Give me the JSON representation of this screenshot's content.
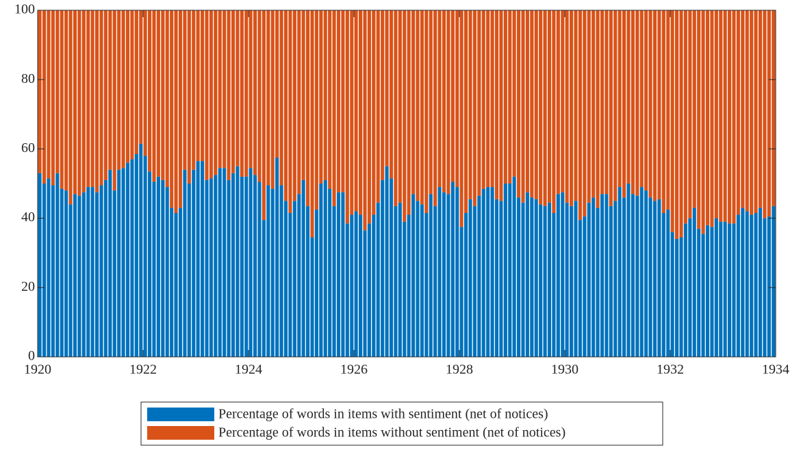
{
  "chart_data": {
    "type": "stacked-bar",
    "x": [
      1920,
      1920.083,
      1920.167,
      1920.25,
      1920.333,
      1920.417,
      1920.5,
      1920.583,
      1920.667,
      1920.75,
      1920.833,
      1920.917,
      1921,
      1921.083,
      1921.167,
      1921.25,
      1921.333,
      1921.417,
      1921.5,
      1921.583,
      1921.667,
      1921.75,
      1921.833,
      1921.917,
      1922,
      1922.083,
      1922.167,
      1922.25,
      1922.333,
      1922.417,
      1922.5,
      1922.583,
      1922.667,
      1922.75,
      1922.833,
      1922.917,
      1923,
      1923.083,
      1923.167,
      1923.25,
      1923.333,
      1923.417,
      1923.5,
      1923.583,
      1923.667,
      1923.75,
      1923.833,
      1923.917,
      1924,
      1924.083,
      1924.167,
      1924.25,
      1924.333,
      1924.417,
      1924.5,
      1924.583,
      1924.667,
      1924.75,
      1924.833,
      1924.917,
      1925,
      1925.083,
      1925.167,
      1925.25,
      1925.333,
      1925.417,
      1925.5,
      1925.583,
      1925.667,
      1925.75,
      1925.833,
      1925.917,
      1926,
      1926.083,
      1926.167,
      1926.25,
      1926.333,
      1926.417,
      1926.5,
      1926.583,
      1926.667,
      1926.75,
      1926.833,
      1926.917,
      1927,
      1927.083,
      1927.167,
      1927.25,
      1927.333,
      1927.417,
      1927.5,
      1927.583,
      1927.667,
      1927.75,
      1927.833,
      1927.917,
      1928,
      1928.083,
      1928.167,
      1928.25,
      1928.333,
      1928.417,
      1928.5,
      1928.583,
      1928.667,
      1928.75,
      1928.833,
      1928.917,
      1929,
      1929.083,
      1929.167,
      1929.25,
      1929.333,
      1929.417,
      1929.5,
      1929.583,
      1929.667,
      1929.75,
      1929.833,
      1929.917,
      1930,
      1930.083,
      1930.167,
      1930.25,
      1930.333,
      1930.417,
      1930.5,
      1930.583,
      1930.667,
      1930.75,
      1930.833,
      1930.917,
      1931,
      1931.083,
      1931.167,
      1931.25,
      1931.333,
      1931.417,
      1931.5,
      1931.583,
      1931.667,
      1931.75,
      1931.833,
      1931.917,
      1932,
      1932.083,
      1932.167,
      1932.25,
      1932.333,
      1932.417,
      1932.5,
      1932.583,
      1932.667,
      1932.75,
      1932.833,
      1932.917,
      1933,
      1933.083,
      1933.167,
      1933.25,
      1933.333,
      1933.417,
      1933.5,
      1933.583,
      1933.667,
      1933.75,
      1933.833,
      1933.917
    ],
    "series": [
      {
        "name": "Percentage of words in items with sentiment (net of notices)",
        "color": "#0072bd",
        "values": [
          53,
          50,
          51.5,
          49.5,
          53,
          48.5,
          48,
          44,
          47,
          46.5,
          47.5,
          49,
          49,
          47.5,
          49.5,
          51,
          54,
          48,
          54,
          54.5,
          56,
          57,
          58.5,
          61.5,
          58,
          53.5,
          50.5,
          52,
          51,
          49,
          43,
          41.5,
          43,
          54,
          50,
          54,
          56.5,
          56.5,
          51,
          51.5,
          52.5,
          54.5,
          54.5,
          51,
          53,
          55,
          52,
          52,
          54.5,
          52.5,
          50.5,
          39.5,
          49.5,
          48.5,
          57.5,
          49.5,
          45,
          41.5,
          45,
          47,
          51,
          43.5,
          34.5,
          42.5,
          50,
          51,
          48.5,
          43.5,
          47.5,
          47.5,
          38.5,
          41,
          42,
          41,
          36.5,
          38.5,
          41,
          44.5,
          51,
          55,
          51.5,
          43.5,
          44.5,
          39,
          41,
          47,
          45,
          44,
          41.5,
          47,
          43.5,
          49,
          47.5,
          47,
          50.5,
          49,
          37.5,
          41.5,
          45.5,
          43.5,
          46.5,
          48.5,
          49,
          49,
          45.5,
          45,
          50,
          50,
          52,
          46,
          44.5,
          47.5,
          46,
          45.5,
          44,
          43.5,
          44.5,
          41.5,
          47,
          47.5,
          44.5,
          43.5,
          45,
          39.5,
          40.5,
          44.5,
          46,
          43,
          47,
          47,
          43.5,
          45,
          49,
          46,
          50,
          47,
          46.5,
          49,
          48,
          46,
          45,
          45.5,
          41.5,
          42.5,
          36,
          34,
          34.5,
          38.5,
          40,
          43,
          37,
          35.5,
          38,
          37.5,
          40,
          39,
          39,
          38.5,
          38.5,
          41,
          43,
          42,
          41,
          41.5,
          43,
          40,
          40.5,
          43.5
        ]
      },
      {
        "name": "Percentage of words in items without sentiment (net of notices)",
        "color": "#d95319",
        "values": [
          47,
          50,
          48.5,
          50.5,
          47,
          51.5,
          52,
          56,
          53,
          53.5,
          52.5,
          51,
          51,
          52.5,
          50.5,
          49,
          46,
          52,
          46,
          45.5,
          44,
          43,
          41.5,
          38.5,
          42,
          46.5,
          49.5,
          48,
          49,
          51,
          57,
          58.5,
          57,
          46,
          50,
          46,
          43.5,
          43.5,
          49,
          48.5,
          47.5,
          45.5,
          45.5,
          49,
          47,
          45,
          48,
          48,
          45.5,
          47.5,
          49.5,
          60.5,
          50.5,
          51.5,
          42.5,
          50.5,
          55,
          58.5,
          55,
          53,
          49,
          56.5,
          65.5,
          57.5,
          50,
          49,
          51.5,
          56.5,
          52.5,
          52.5,
          61.5,
          59,
          58,
          59,
          63.5,
          61.5,
          59,
          55.5,
          49,
          45,
          48.5,
          56.5,
          55.5,
          61,
          59,
          53,
          55,
          56,
          58.5,
          53,
          56.5,
          51,
          52.5,
          53,
          49.5,
          51,
          62.5,
          58.5,
          54.5,
          56.5,
          53.5,
          51.5,
          51,
          51,
          54.5,
          55,
          50,
          50,
          48,
          54,
          55.5,
          52.5,
          54,
          54.5,
          56,
          56.5,
          55.5,
          58.5,
          53,
          52.5,
          55.5,
          56.5,
          55,
          60.5,
          59.5,
          55.5,
          54,
          57,
          53,
          53,
          56.5,
          55,
          51,
          54,
          50,
          53,
          53.5,
          51,
          52,
          54,
          55,
          54.5,
          58.5,
          57.5,
          64,
          66,
          65.5,
          61.5,
          60,
          57,
          63,
          64.5,
          62,
          62.5,
          60,
          61,
          61,
          61.5,
          61.5,
          59,
          57,
          58,
          59,
          58.5,
          57,
          60,
          59.5,
          56.5
        ]
      }
    ],
    "xlim": [
      1920,
      1934
    ],
    "xticks": [
      1920,
      1922,
      1924,
      1926,
      1928,
      1930,
      1932,
      1934
    ],
    "ylim": [
      0,
      100
    ],
    "yticks": [
      0,
      20,
      40,
      60,
      80,
      100
    ],
    "legend": "bottom"
  }
}
